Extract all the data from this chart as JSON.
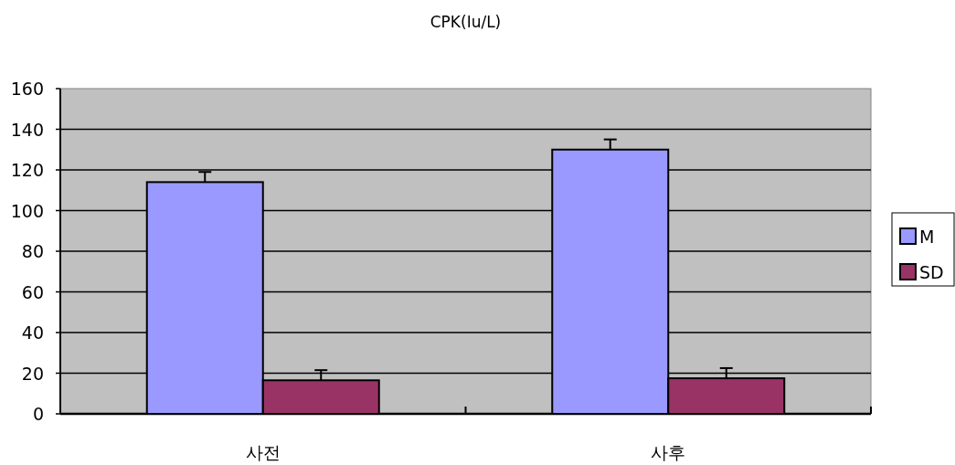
{
  "chart_data": {
    "type": "bar",
    "title": "CPK(Iu/L)",
    "categories": [
      "사전",
      "사후"
    ],
    "series": [
      {
        "name": "M",
        "color": "#9999ff",
        "values": [
          114,
          130
        ],
        "errors": [
          5,
          5
        ]
      },
      {
        "name": "SD",
        "color": "#993366",
        "values": [
          16.5,
          17.5
        ],
        "errors": [
          5,
          5
        ]
      }
    ],
    "ylim": [
      0,
      160
    ],
    "yticks": [
      0,
      20,
      40,
      60,
      80,
      100,
      120,
      140,
      160
    ],
    "grid": "y",
    "legend": "right"
  }
}
